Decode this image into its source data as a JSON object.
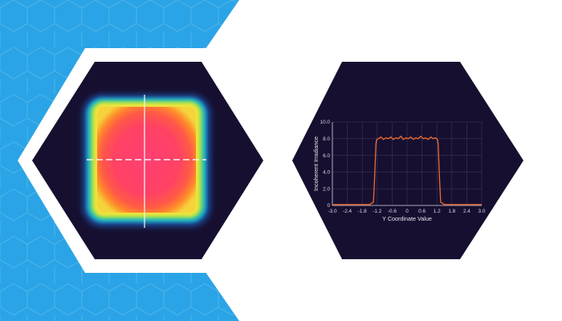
{
  "colors": {
    "background": "#ffffff",
    "blue_band": "#2aa4e6",
    "hex_fill": "#170f30",
    "hex_border": "#ffffff",
    "line": "#f26a2e",
    "grid": "#3a3558",
    "axis": "#cfd0dc"
  },
  "left_panel": {
    "type": "heatmap",
    "description": "irradiance map with crosshair",
    "colormap": [
      "#1a1540",
      "#1fb5c9",
      "#7ed957",
      "#f5e43a",
      "#ff8a2a",
      "#ff4a4a",
      "#ff3070"
    ]
  },
  "chart_data": {
    "type": "line",
    "title": "",
    "xlabel": "Y Coordinate Value",
    "ylabel": "Incoherent Irradiance",
    "xlim": [
      -3.0,
      3.0
    ],
    "ylim": [
      0,
      10.0
    ],
    "grid": true,
    "x_ticks": [
      "-3.0",
      "-2.4",
      "-1.8",
      "-1.2",
      "-0.6",
      "0",
      "0.6",
      "1.2",
      "1.8",
      "2.4",
      "3.0"
    ],
    "y_ticks": [
      "0",
      "2.0",
      "4.0",
      "6.0",
      "8.0",
      "10.0"
    ],
    "series": [
      {
        "x": [
          -3.0,
          -1.5,
          -1.35,
          -1.3,
          -1.25,
          -1.22,
          -1.15,
          -1.05,
          -0.95,
          -0.85,
          -0.75,
          -0.65,
          -0.55,
          -0.45,
          -0.35,
          -0.25,
          -0.15,
          -0.05,
          0.05,
          0.15,
          0.25,
          0.35,
          0.45,
          0.55,
          0.65,
          0.75,
          0.85,
          0.95,
          1.05,
          1.15,
          1.22,
          1.25,
          1.3,
          1.35,
          1.5,
          3.0
        ],
        "y": [
          0.1,
          0.1,
          0.4,
          3.5,
          7.4,
          7.9,
          8.0,
          8.2,
          7.9,
          8.1,
          8.0,
          8.2,
          7.9,
          8.1,
          8.0,
          8.3,
          7.9,
          8.1,
          8.0,
          8.2,
          7.9,
          8.1,
          8.0,
          8.3,
          8.0,
          8.1,
          7.9,
          8.2,
          8.0,
          8.1,
          7.9,
          7.4,
          3.5,
          0.4,
          0.1,
          0.1
        ]
      }
    ]
  }
}
